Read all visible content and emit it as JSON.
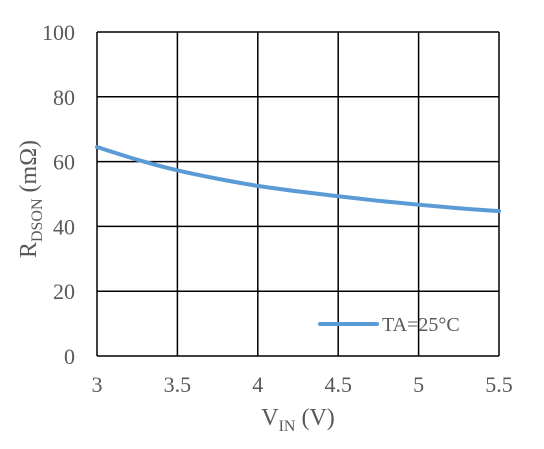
{
  "chart_data": {
    "type": "line",
    "xlabel": {
      "main": "V",
      "sub": "IN",
      "unit": " (V)"
    },
    "ylabel": {
      "main": "R",
      "sub": "DSON",
      "unit": " (mΩ)"
    },
    "xlim": [
      3,
      5.5
    ],
    "ylim": [
      0,
      100
    ],
    "x_ticks": [
      "3",
      "3.5",
      "4",
      "4.5",
      "5",
      "5.5"
    ],
    "y_ticks": [
      "0",
      "20",
      "40",
      "60",
      "80",
      "100"
    ],
    "grid": true,
    "legend_position": "bottom-right",
    "series": [
      {
        "name": "TA=25°C",
        "color": "#5B9BD5",
        "x": [
          3.0,
          3.25,
          3.5,
          3.75,
          4.0,
          4.25,
          4.5,
          4.75,
          5.0,
          5.25,
          5.5
        ],
        "y": [
          64.5,
          60.6,
          57.3,
          54.7,
          52.5,
          50.8,
          49.3,
          47.9,
          46.7,
          45.6,
          44.7
        ]
      }
    ]
  }
}
